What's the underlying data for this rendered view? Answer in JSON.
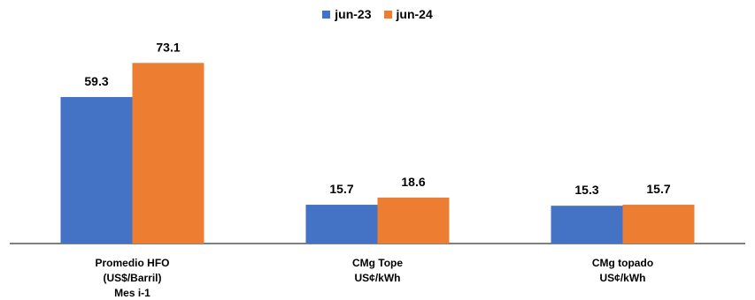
{
  "chart_data": {
    "type": "bar",
    "title": "",
    "xlabel": "",
    "ylabel": "",
    "ylim": [
      0,
      80
    ],
    "grid": false,
    "legend_position": "top-center",
    "categories": [
      [
        "Promedio HFO",
        "(US$/Barril)",
        "Mes i-1"
      ],
      [
        "CMg Tope",
        "US¢/kWh"
      ],
      [
        "CMg topado",
        "US¢/kWh"
      ]
    ],
    "series": [
      {
        "name": "jun-23",
        "color": "#4472C4",
        "values": [
          59.3,
          15.7,
          15.3
        ],
        "labels": [
          "59.3",
          "15.7",
          "15.3"
        ]
      },
      {
        "name": "jun-24",
        "color": "#ED7D31",
        "values": [
          73.1,
          18.6,
          15.7
        ],
        "labels": [
          "73.1",
          "18.6",
          "15.7"
        ]
      }
    ]
  }
}
